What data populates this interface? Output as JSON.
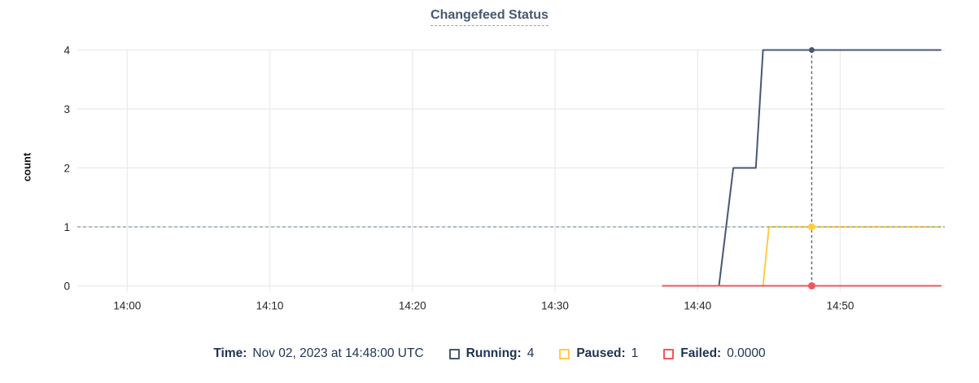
{
  "chart_data": {
    "type": "line",
    "title": "Changefeed Status",
    "xlabel": "",
    "ylabel": "count",
    "ylim": [
      0,
      4
    ],
    "y_ticks": [
      0,
      1,
      2,
      3,
      4
    ],
    "x_ticks": [
      "14:00",
      "14:10",
      "14:20",
      "14:30",
      "14:40",
      "14:50"
    ],
    "x_domain": [
      "13:56:30",
      "14:57:20"
    ],
    "grid": true,
    "legend_position": "bottom",
    "series": [
      {
        "name": "Running",
        "color": "#475872",
        "points": [
          [
            "14:37:30",
            0
          ],
          [
            "14:41:30",
            0
          ],
          [
            "14:42:30",
            2
          ],
          [
            "14:44:05",
            2
          ],
          [
            "14:44:35",
            4
          ],
          [
            "14:57:05",
            4
          ]
        ]
      },
      {
        "name": "Paused",
        "color": "#ffcd40",
        "points": [
          [
            "14:37:30",
            0
          ],
          [
            "14:44:35",
            0
          ],
          [
            "14:45:00",
            1
          ],
          [
            "14:57:05",
            1
          ]
        ]
      },
      {
        "name": "Failed",
        "color": "#f25759",
        "points": [
          [
            "14:37:30",
            0
          ],
          [
            "14:57:05",
            0
          ]
        ]
      }
    ],
    "crosshair": {
      "time": "14:48:00",
      "hline_value": 1,
      "hline_color": "#9bacb6",
      "vline_color": "#54687d",
      "marker_values": {
        "Running": 4,
        "Paused": 1,
        "Failed": 0
      }
    }
  },
  "legend": {
    "time_label": "Time:",
    "time_value": "Nov 02, 2023 at 14:48:00 UTC",
    "items": [
      {
        "label": "Running:",
        "value": "4"
      },
      {
        "label": "Paused:",
        "value": "1"
      },
      {
        "label": "Failed:",
        "value": "0.0000"
      }
    ]
  }
}
